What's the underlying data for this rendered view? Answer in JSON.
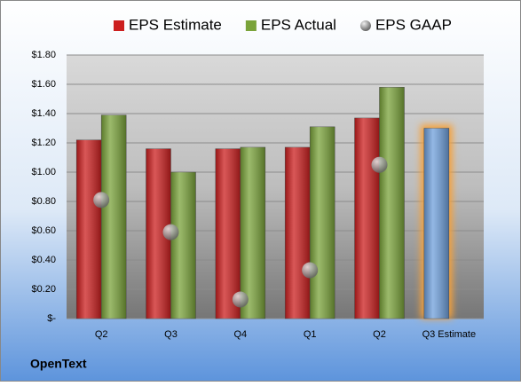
{
  "chart_data": {
    "type": "bar",
    "company": "OpenText",
    "categories": [
      "Q2",
      "Q3",
      "Q4",
      "Q1",
      "Q2",
      "Q3 Estimate"
    ],
    "series": [
      {
        "name": "EPS Estimate",
        "color": "#cc1f1f",
        "point_colors": [
          "#cc1f1f",
          "#cc1f1f",
          "#cc1f1f",
          "#cc1f1f",
          "#cc1f1f",
          "#6fa0dc"
        ],
        "values": [
          1.22,
          1.16,
          1.16,
          1.17,
          1.37,
          1.3
        ]
      },
      {
        "name": "EPS Actual",
        "color": "#7aa33a",
        "values": [
          1.39,
          1.0,
          1.17,
          1.31,
          1.58,
          null
        ]
      },
      {
        "name": "EPS GAAP",
        "color": "#9a9a9a",
        "marker": "circle",
        "values": [
          0.81,
          0.59,
          0.13,
          0.33,
          1.05,
          null
        ]
      }
    ],
    "ylim": [
      0,
      1.8
    ],
    "yticks": [
      {
        "value": 0,
        "label": "$-"
      },
      {
        "value": 0.2,
        "label": "$0.20"
      },
      {
        "value": 0.4,
        "label": "$0.40"
      },
      {
        "value": 0.6,
        "label": "$0.60"
      },
      {
        "value": 0.8,
        "label": "$0.80"
      },
      {
        "value": 1.0,
        "label": "$1.00"
      },
      {
        "value": 1.2,
        "label": "$1.20"
      },
      {
        "value": 1.4,
        "label": "$1.40"
      },
      {
        "value": 1.6,
        "label": "$1.60"
      },
      {
        "value": 1.8,
        "label": "$1.80"
      }
    ],
    "grid": true,
    "legend": "top"
  }
}
